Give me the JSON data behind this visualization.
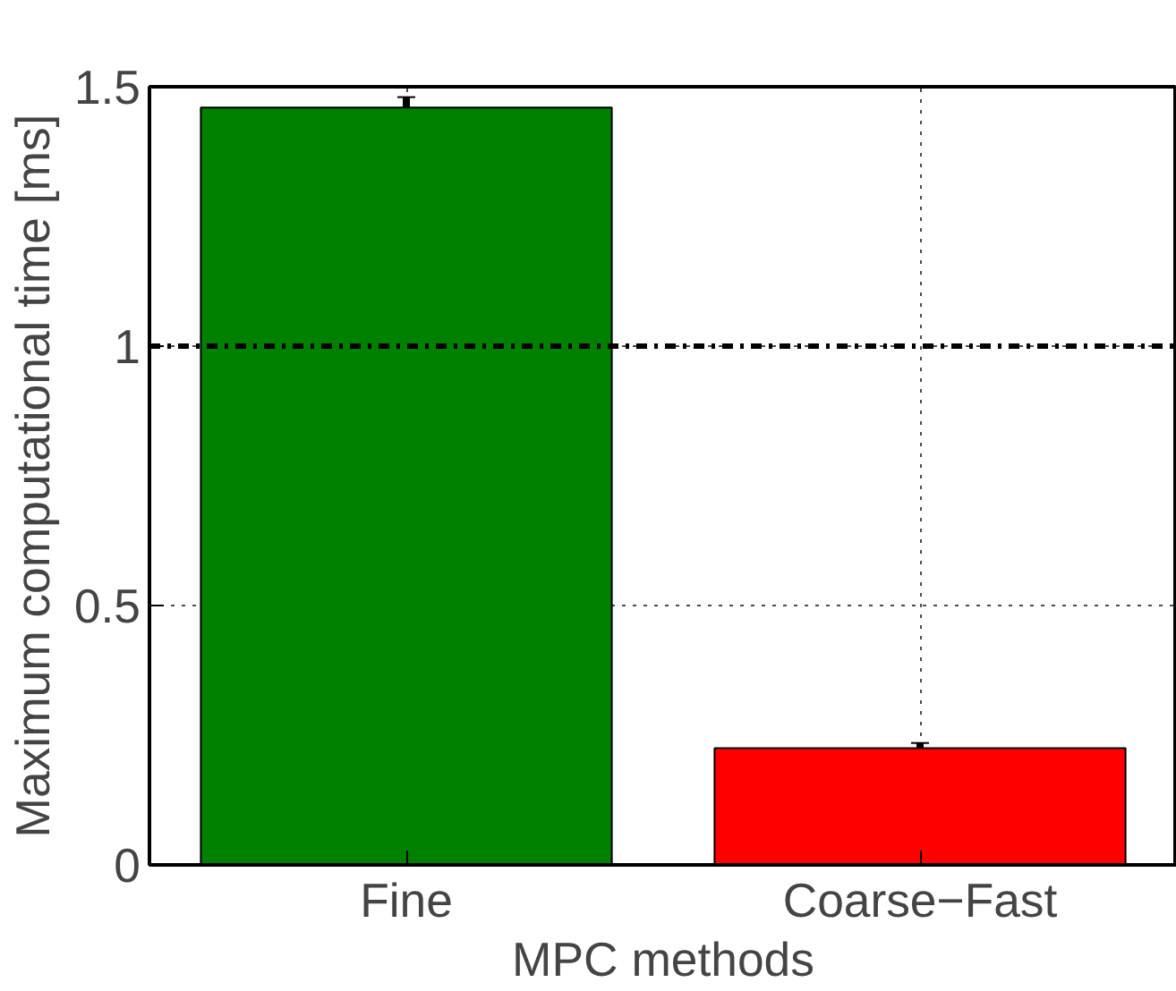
{
  "chart_data": {
    "type": "bar",
    "xlabel": "MPC methods",
    "ylabel": "Maximum computational time [ms]",
    "categories": [
      "Fine",
      "Coarse−Fast"
    ],
    "values": [
      1.46,
      0.225
    ],
    "colors": [
      "#008000",
      "#ff0000"
    ],
    "errors": [
      0.02,
      0.01
    ],
    "ylim": [
      0,
      1.5
    ],
    "yticks": [
      0,
      0.5,
      1,
      1.5
    ],
    "ref_lines": [
      {
        "axis": "y",
        "value": 1,
        "label": null,
        "color": "#000000",
        "line_style": "dashdot"
      }
    ],
    "grid": true
  }
}
